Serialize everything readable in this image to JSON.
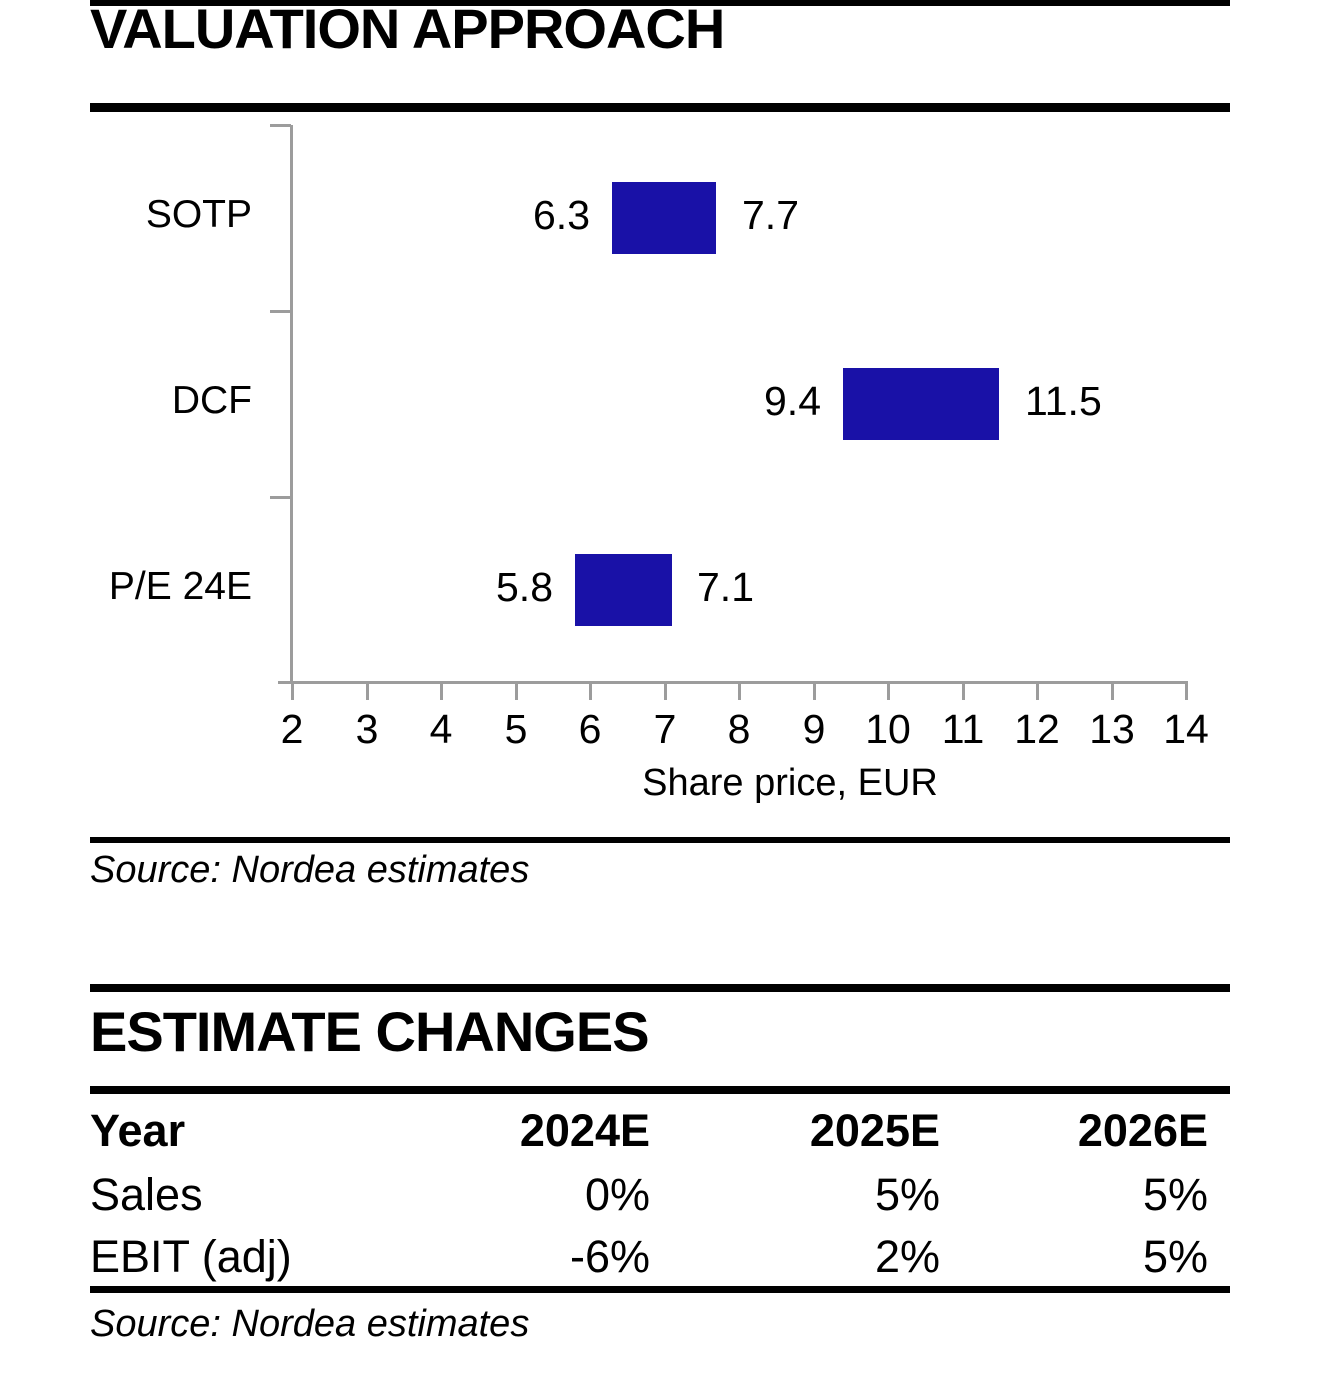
{
  "valuation_section": {
    "title": "VALUATION APPROACH",
    "source_note": "Source: Nordea estimates"
  },
  "chart_data": {
    "type": "bar",
    "subtype": "horizontal-range-bars",
    "title": "",
    "categories": [
      "SOTP",
      "DCF",
      "P/E 24E"
    ],
    "series": [
      {
        "category": "SOTP",
        "low": 6.3,
        "high": 7.7
      },
      {
        "category": "DCF",
        "low": 9.4,
        "high": 11.5
      },
      {
        "category": "P/E 24E",
        "low": 5.8,
        "high": 7.1
      }
    ],
    "xlabel": "Share price, EUR",
    "xlim": [
      2,
      14
    ],
    "xticks": [
      2,
      3,
      4,
      5,
      6,
      7,
      8,
      9,
      10,
      11,
      12,
      13,
      14
    ],
    "grid": false,
    "legend": "none",
    "bar_color": "#1911A7",
    "axis_color": "#9C9C9C"
  },
  "estimate_section": {
    "title": "ESTIMATE CHANGES",
    "table": {
      "columns": [
        "Year",
        "2024E",
        "2025E",
        "2026E"
      ],
      "rows": [
        {
          "label": "Sales",
          "values": [
            "0%",
            "5%",
            "5%"
          ]
        },
        {
          "label": "EBIT (adj)",
          "values": [
            "-6%",
            "2%",
            "5%"
          ]
        }
      ]
    },
    "source_note": "Source: Nordea estimates"
  }
}
